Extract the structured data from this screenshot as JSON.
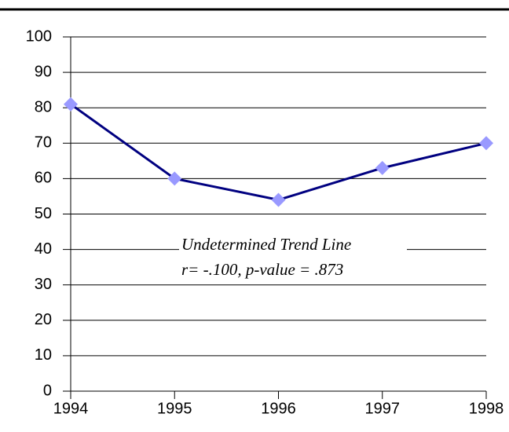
{
  "chart_data": {
    "type": "line",
    "x": [
      1994,
      1995,
      1996,
      1997,
      1998
    ],
    "series": [
      {
        "color": "#000080",
        "marker_color": "#9999ff",
        "values": [
          81,
          60,
          54,
          63,
          70
        ]
      }
    ],
    "xlim": [
      1994,
      1998
    ],
    "xticks": [
      1994,
      1995,
      1996,
      1997,
      1998
    ],
    "ylim": [
      0,
      100
    ],
    "yticks": [
      0,
      10,
      20,
      30,
      40,
      50,
      60,
      70,
      80,
      90,
      100
    ],
    "grid": true,
    "annotation": [
      "Undetermined Trend Line",
      "r= -.100, p-value = .873"
    ]
  }
}
